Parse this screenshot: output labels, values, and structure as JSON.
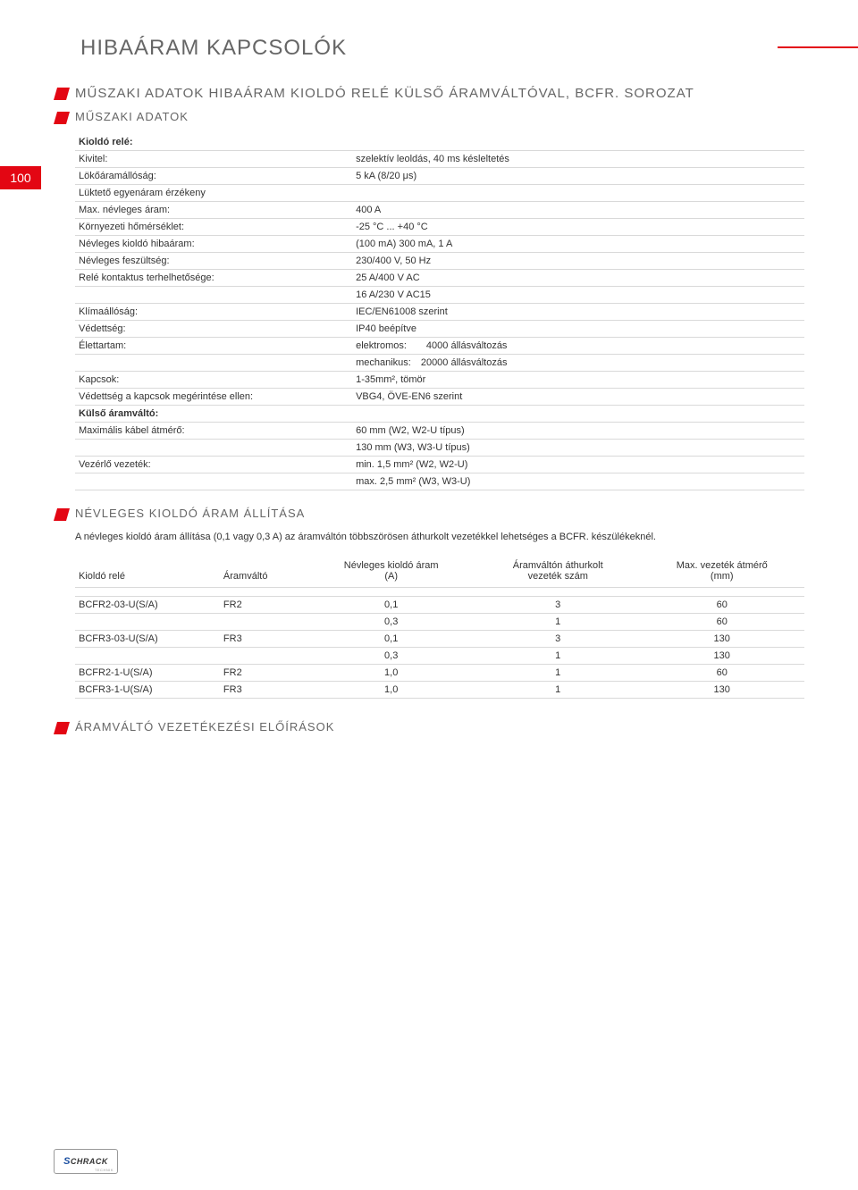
{
  "pageTitle": "HIBAÁRAM KAPCSOLÓK",
  "pageNumber": "100",
  "colors": {
    "accent": "#e30613",
    "headingText": "#666666",
    "bodyText": "#333333",
    "ruleLine": "#d9d9d9",
    "background": "#ffffff",
    "logoBlue": "#1a4ea0"
  },
  "section1": {
    "heading": "MŰSZAKI ADATOK HIBAÁRAM KIOLDÓ RELÉ KÜLSŐ ÁRAMVÁLTÓVAL, BCFR. SOROZAT"
  },
  "section2": {
    "heading": "MŰSZAKI ADATOK",
    "groups": [
      {
        "label": "Kioldó relé:",
        "rows": [
          {
            "k": "Kivitel:",
            "v": "szelektív leoldás, 40 ms késleltetés"
          },
          {
            "k": "Lökőáramállóság:",
            "v": "5 kA (8/20 μs)"
          },
          {
            "k": "Lüktető egyenáram érzékeny",
            "v": ""
          },
          {
            "k": "Max. névleges áram:",
            "v": "400 A"
          },
          {
            "k": "Környezeti hőmérséklet:",
            "v": "-25 °C ... +40 °C"
          },
          {
            "k": "Névleges kioldó hibaáram:",
            "v": "(100 mA) 300 mA, 1 A"
          },
          {
            "k": "Névleges feszültség:",
            "v": "230/400 V, 50 Hz"
          },
          {
            "k": "Relé kontaktus terhelhetősége:",
            "v": "25 A/400 V AC"
          },
          {
            "k": "",
            "v": "16 A/230 V AC15"
          },
          {
            "k": "Klímaállóság:",
            "v": "IEC/EN61008 szerint"
          },
          {
            "k": "Védettség:",
            "v": "IP40 beépítve"
          },
          {
            "k": "Élettartam:",
            "v": "elektromos:  4000 állásváltozás"
          },
          {
            "k": "",
            "v": "mechanikus: 20000 állásváltozás"
          },
          {
            "k": "Kapcsok:",
            "v": "1-35mm², tömör"
          },
          {
            "k": "Védettség a kapcsok megérintése ellen:",
            "v": "VBG4, ÖVE-EN6 szerint"
          }
        ]
      },
      {
        "label": "Külső áramváltó:",
        "rows": [
          {
            "k": "Maximális kábel átmérő:",
            "v": "60 mm (W2, W2-U típus)"
          },
          {
            "k": "",
            "v": "130 mm (W3, W3-U típus)"
          },
          {
            "k": "Vezérlő vezeték:",
            "v": "min. 1,5 mm² (W2, W2-U)"
          },
          {
            "k": "",
            "v": "max. 2,5 mm² (W3, W3-U)"
          }
        ]
      }
    ]
  },
  "section3": {
    "heading": "NÉVLEGES KIOLDÓ ÁRAM ÁLLÍTÁSA",
    "body": "A névleges kioldó áram állítása (0,1 vagy 0,3 A) az áramváltón többszörösen áthurkolt vezetékkel lehetséges a BCFR. készülékeknél.",
    "columns": [
      "Kioldó relé",
      "Áramváltó",
      "Névleges kioldó áram\n(A)",
      "Áramváltón áthurkolt\nvezeték szám",
      "Max. vezeték átmérő\n(mm)"
    ],
    "rows": [
      [
        "BCFR2-03-U(S/A)",
        "FR2",
        "0,1",
        "3",
        "60"
      ],
      [
        "",
        "",
        "0,3",
        "1",
        "60"
      ],
      [
        "BCFR3-03-U(S/A)",
        "FR3",
        "0,1",
        "3",
        "130"
      ],
      [
        "",
        "",
        "0,3",
        "1",
        "130"
      ],
      [
        "BCFR2-1-U(S/A)",
        "FR2",
        "1,0",
        "1",
        "60"
      ],
      [
        "BCFR3-1-U(S/A)",
        "FR3",
        "1,0",
        "1",
        "130"
      ]
    ]
  },
  "section4": {
    "heading": "ÁRAMVÁLTÓ VEZETÉKEZÉSI ELŐÍRÁSOK"
  },
  "logo": {
    "brand": "CHRACK",
    "prefix": "S",
    "sub": "TECHNIK"
  }
}
